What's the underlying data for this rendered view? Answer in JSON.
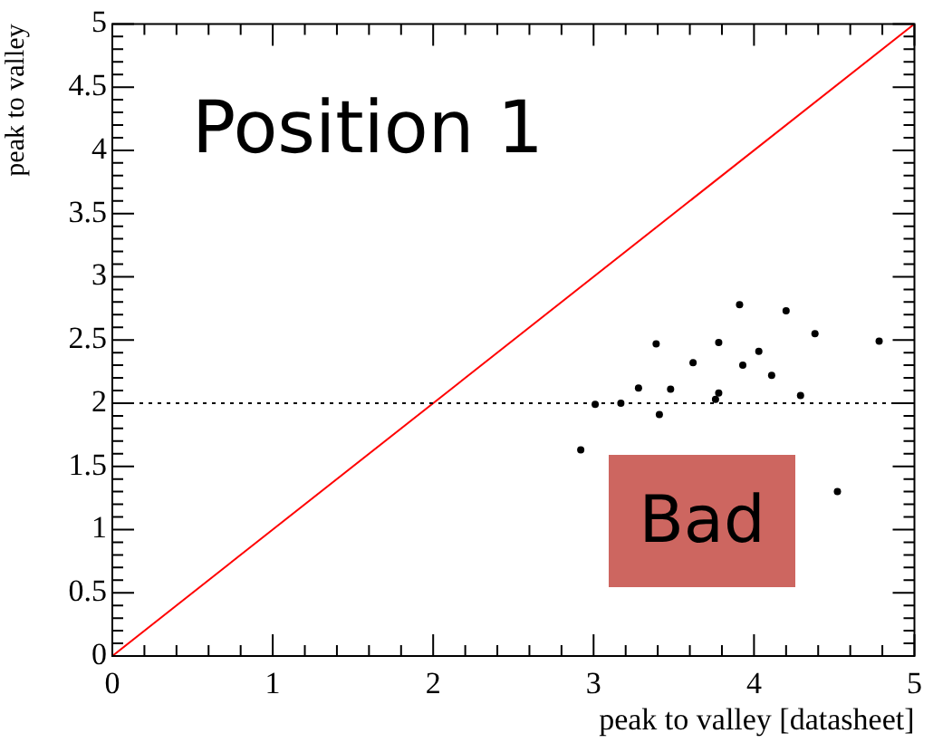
{
  "chart_data": {
    "type": "scatter",
    "title": "Position 1",
    "xlabel": "peak to valley [datasheet]",
    "ylabel": "peak to valley",
    "annotations": [
      "Bad"
    ],
    "series": [
      {
        "type": "line",
        "color": "#ff0000",
        "x": [
          0,
          5
        ],
        "values": [
          0,
          5
        ],
        "marker": "none"
      },
      {
        "type": "scatter",
        "color": "#000000",
        "marker": "circle",
        "x": [
          2.92,
          3.01,
          3.17,
          3.28,
          3.39,
          3.41,
          3.48,
          3.62,
          3.76,
          3.78,
          3.78,
          3.91,
          3.93,
          4.03,
          4.11,
          4.2,
          4.29,
          4.38,
          4.52,
          4.78
        ],
        "values": [
          1.63,
          1.99,
          2.0,
          2.12,
          2.47,
          1.91,
          2.11,
          2.32,
          2.03,
          2.08,
          2.48,
          2.78,
          2.3,
          2.41,
          2.22,
          2.73,
          2.06,
          2.55,
          1.3,
          2.49
        ]
      }
    ],
    "ref_lines": [
      {
        "axis": "y",
        "value": 2,
        "color": "#000000",
        "line_style": "dotted"
      }
    ],
    "xlim": [
      0,
      5
    ],
    "xticks": [
      0,
      1,
      2,
      3,
      4,
      5
    ],
    "ylim": [
      0,
      5
    ],
    "yticks": [
      0,
      0.5,
      1,
      1.5,
      2,
      2.5,
      3,
      3.5,
      4,
      4.5,
      5
    ],
    "grid": false,
    "legend": false
  }
}
